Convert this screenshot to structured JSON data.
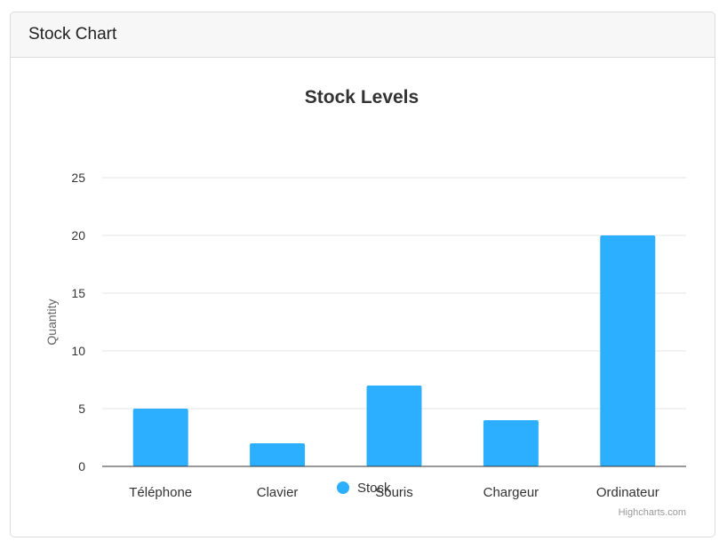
{
  "card": {
    "title": "Stock Chart"
  },
  "credits": "Highcharts.com",
  "colors": {
    "series": "#2caffe",
    "grid": "#e6e6e6",
    "axis_line": "#333333",
    "text": "#333333"
  },
  "chart_data": {
    "type": "bar",
    "title": "Stock Levels",
    "xlabel": "",
    "ylabel": "Quantity",
    "categories": [
      "Téléphone",
      "Clavier",
      "Souris",
      "Chargeur",
      "Ordinateur"
    ],
    "series": [
      {
        "name": "Stock",
        "values": [
          5,
          2,
          7,
          4,
          20
        ]
      }
    ],
    "ylim": [
      0,
      25
    ],
    "yticks": [
      0,
      5,
      10,
      15,
      20,
      25
    ],
    "grid": true,
    "legend": "bottom-center"
  }
}
